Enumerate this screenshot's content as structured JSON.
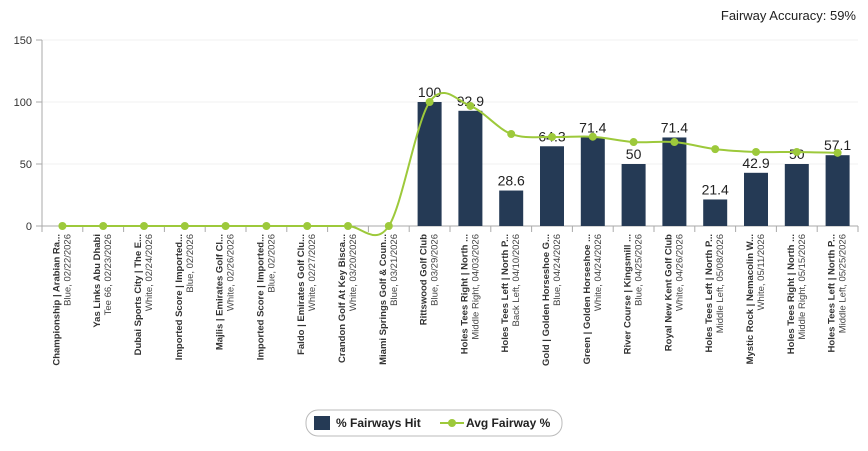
{
  "chart_data": {
    "type": "bar_line",
    "summary": "Fairway Accuracy: 59%",
    "categories": [
      "Championship | Arabian Ra...",
      "Yas Links Abu Dhabi",
      "Dubai Sports City | The E...",
      "Imported Score | Imported...",
      "Majlis | Emirates Golf Cl...",
      "Imported Score | Imported...",
      "Faldo | Emirates Golf Clu...",
      "Crandon Golf At Key Bisca...",
      "Miami Springs Golf & Coun...",
      "Rittswood Golf Club",
      "Holes Tees Right | North ...",
      "Holes Tees Left | North P...",
      "Gold | Golden Horseshoe G...",
      "Green | Golden Horseshoe ...",
      "River Course | Kingsmill ...",
      "Royal New Kent Golf Club",
      "Holes Tees Left | North P...",
      "Mystic Rock | Nemacolin W...",
      "Holes Tees Right | North ...",
      "Holes Tees Left | North P..."
    ],
    "category_details": [
      "Blue, 02/22/2026",
      "Tee 66, 02/23/2026",
      "White, 02/24/2026",
      "Blue, 02/2026",
      "White, 02/26/2026",
      "Blue, 02/2026",
      "White, 02/27/2026",
      "White, 03/20/2026",
      "Blue, 03/21/2026",
      "Blue, 03/29/2026",
      "Middle Right, 04/03/2026",
      "Back Left, 04/10/2026",
      "Blue, 04/24/2026",
      "White, 04/24/2026",
      "Blue, 04/25/2026",
      "White, 04/26/2026",
      "Middle Left, 05/08/2026",
      "White, 05/11/2026",
      "Middle Right, 05/15/2026",
      "Middle Left, 05/25/2026"
    ],
    "series": [
      {
        "name": "% Fairways Hit",
        "kind": "bar",
        "color": "#253a55",
        "values": [
          null,
          null,
          null,
          null,
          null,
          null,
          null,
          null,
          null,
          100,
          92.9,
          28.6,
          64.3,
          71.4,
          50,
          71.4,
          21.4,
          42.9,
          50,
          57.1
        ]
      },
      {
        "name": "Avg Fairway %",
        "kind": "line",
        "color": "#9dc93b",
        "values": [
          0,
          0,
          0,
          0,
          0,
          0,
          0,
          0,
          0,
          100,
          96.8,
          74.2,
          71.8,
          72,
          67.7,
          67.7,
          62,
          59.7,
          59.7,
          59
        ]
      }
    ],
    "ylim": [
      0,
      150
    ],
    "yticks": [
      0,
      50,
      100,
      150
    ],
    "grid": true
  }
}
